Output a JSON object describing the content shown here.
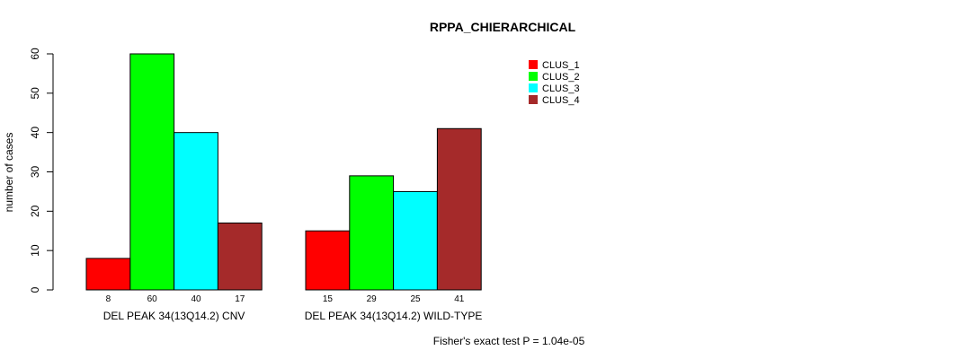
{
  "chart_data": {
    "type": "bar",
    "title": "RPPA_CHIERARCHICAL",
    "xlabel": "",
    "ylabel": "number of cases",
    "ylim": [
      0,
      60
    ],
    "yticks": [
      0,
      10,
      20,
      30,
      40,
      50,
      60
    ],
    "categories": [
      "DEL PEAK 34(13Q14.2) CNV",
      "DEL PEAK 34(13Q14.2) WILD-TYPE"
    ],
    "series": [
      {
        "name": "CLUS_1",
        "color": "#ff0000",
        "values": [
          8,
          15
        ]
      },
      {
        "name": "CLUS_2",
        "color": "#00ff00",
        "values": [
          60,
          29
        ]
      },
      {
        "name": "CLUS_3",
        "color": "#00ffff",
        "values": [
          40,
          25
        ]
      },
      {
        "name": "CLUS_4",
        "color": "#a52a2a",
        "values": [
          17,
          41
        ]
      }
    ],
    "legend_position": "top-right",
    "grid": false,
    "footnote": "Fisher's exact test P = 1.04e-05"
  }
}
